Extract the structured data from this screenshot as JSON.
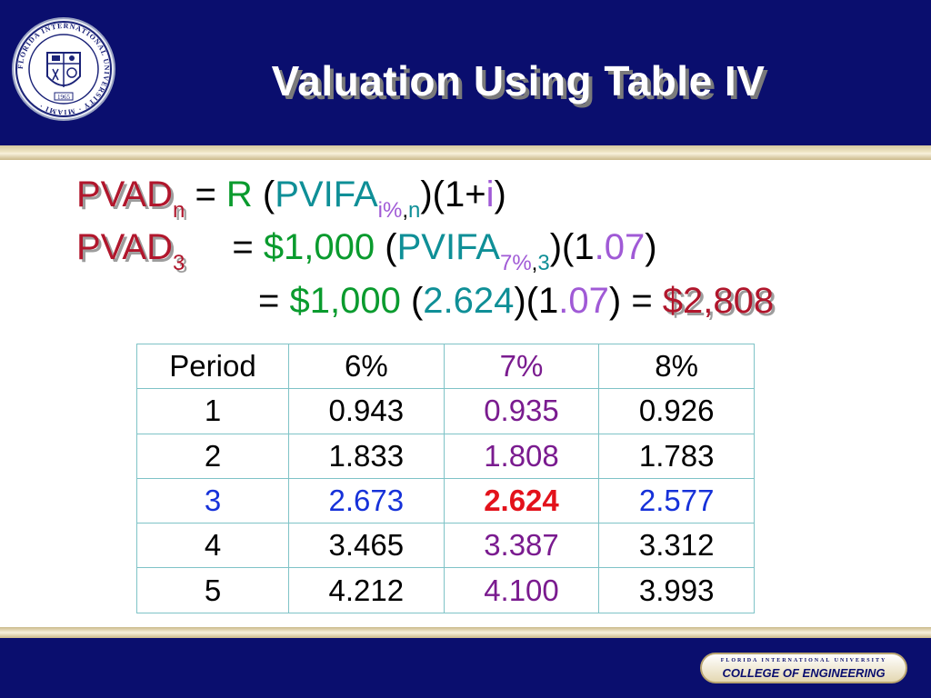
{
  "slide": {
    "title": "Valuation Using Table IV",
    "colors": {
      "header": "#0a0e6e",
      "pvad": "#b1162c",
      "r_value": "#0a9b2e",
      "pvifa": "#0f8f97",
      "rate": "#a05ad6"
    }
  },
  "seal": {
    "ring_text": "FLORIDA INTERNATIONAL UNIVERSITY · MIAMI ·",
    "year": "1965"
  },
  "formula": {
    "line1": {
      "lhs": "PVAD",
      "lhs_sub": "n",
      "eq": " = ",
      "r": "R",
      "open": " (",
      "pvifa": "PVIFA",
      "sub_rate": "i%",
      "sub_sep": ",",
      "sub_n": "n",
      "mid": ")(1+",
      "i": "i",
      "close": ")"
    },
    "line2": {
      "lhs": "PVAD",
      "lhs_sub": "3",
      "eq": "= ",
      "amount": "$1,000",
      "open": " (",
      "pvifa": "PVIFA",
      "sub_rate": "7%",
      "sub_sep": ",",
      "sub_n": "3",
      "mid": ")(1",
      "rate": ".07",
      "close": ")"
    },
    "line3": {
      "eq": "= ",
      "amount": "$1,000",
      "open": " (",
      "factor": "2.624",
      "mid": ")(1",
      "rate": ".07",
      "close": ")",
      "eq2": " = ",
      "result": "$2,808"
    }
  },
  "table": {
    "headers": [
      "Period",
      "6%",
      "7%",
      "8%"
    ],
    "rows": [
      [
        "1",
        "0.943",
        "0.935",
        "0.926"
      ],
      [
        "2",
        "1.833",
        "1.808",
        "1.783"
      ],
      [
        "3",
        "2.673",
        "2.624",
        "2.577"
      ],
      [
        "4",
        "3.465",
        "3.387",
        "3.312"
      ],
      [
        "5",
        "4.212",
        "4.100",
        "3.993"
      ]
    ]
  },
  "footer": {
    "university": "FLORIDA INTERNATIONAL UNIVERSITY",
    "college": "COLLEGE OF ENGINEERING"
  }
}
